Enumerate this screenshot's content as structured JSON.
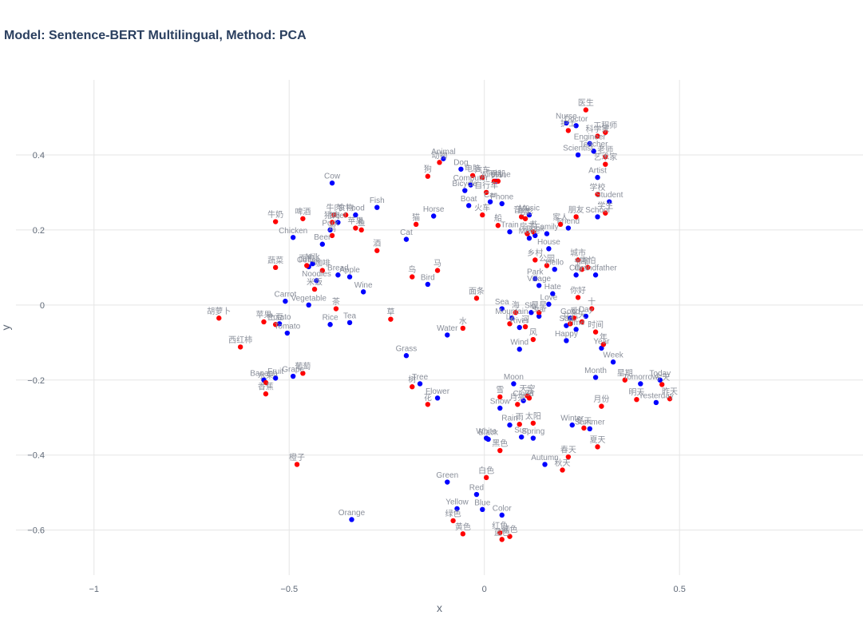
{
  "chart_data": {
    "type": "scatter",
    "title": "Model: Sentence-BERT Multilingual, Method: PCA",
    "xlabel": "x",
    "ylabel": "y",
    "xlim": [
      -1.2,
      0.97
    ],
    "ylim": [
      -0.72,
      0.6
    ],
    "xticks": [
      -1,
      -0.5,
      0,
      0.5
    ],
    "xtick_labels": [
      "−1",
      "−0.5",
      "0",
      "0.5"
    ],
    "yticks": [
      -0.6,
      -0.4,
      -0.2,
      0,
      0.2,
      0.4
    ],
    "ytick_labels": [
      "−0.6",
      "−0.4",
      "−0.2",
      "0",
      "0.2",
      "0.4"
    ],
    "grid": true,
    "legend": "none",
    "colors": {
      "english": "#0000ff",
      "chinese": "#ff0000",
      "grid": "#e5e5e5",
      "label": "#8a8f9a"
    },
    "series": [
      {
        "color": "#0000ff",
        "points": [
          {
            "label": "Nurse",
            "x": 0.21,
            "y": 0.485
          },
          {
            "label": "Doctor",
            "x": 0.235,
            "y": 0.478
          },
          {
            "label": "Engineer",
            "x": 0.27,
            "y": 0.43
          },
          {
            "label": "Scientist",
            "x": 0.24,
            "y": 0.4
          },
          {
            "label": "Teacher",
            "x": 0.28,
            "y": 0.41
          },
          {
            "label": "Artist",
            "x": 0.29,
            "y": 0.34
          },
          {
            "label": "Student",
            "x": 0.32,
            "y": 0.275
          },
          {
            "label": "School",
            "x": 0.29,
            "y": 0.235
          },
          {
            "label": "Friend",
            "x": 0.215,
            "y": 0.205
          },
          {
            "label": "Family",
            "x": 0.16,
            "y": 0.19
          },
          {
            "label": "Book",
            "x": 0.13,
            "y": 0.185
          },
          {
            "label": "Movie",
            "x": 0.115,
            "y": 0.178
          },
          {
            "label": "Train",
            "x": 0.065,
            "y": 0.195
          },
          {
            "label": "Music",
            "x": 0.115,
            "y": 0.24
          },
          {
            "label": "Phone",
            "x": 0.045,
            "y": 0.27
          },
          {
            "label": "Computer",
            "x": -0.035,
            "y": 0.32
          },
          {
            "label": "Airplane",
            "x": 0.03,
            "y": 0.33
          },
          {
            "label": "Bicycle",
            "x": -0.05,
            "y": 0.305
          },
          {
            "label": "Boat",
            "x": -0.04,
            "y": 0.265
          },
          {
            "label": "Car",
            "x": 0.015,
            "y": 0.275
          },
          {
            "label": "Dog",
            "x": -0.06,
            "y": 0.362
          },
          {
            "label": "Animal",
            "x": -0.105,
            "y": 0.39
          },
          {
            "label": "Horse",
            "x": -0.13,
            "y": 0.237
          },
          {
            "label": "Cat",
            "x": -0.2,
            "y": 0.175
          },
          {
            "label": "Fish",
            "x": -0.275,
            "y": 0.26
          },
          {
            "label": "Cow",
            "x": -0.39,
            "y": 0.325
          },
          {
            "label": "Chicken",
            "x": -0.49,
            "y": 0.18
          },
          {
            "label": "Beer",
            "x": -0.415,
            "y": 0.162
          },
          {
            "label": "Pork",
            "x": -0.395,
            "y": 0.2
          },
          {
            "label": "Beef",
            "x": -0.375,
            "y": 0.22
          },
          {
            "label": "Food",
            "x": -0.33,
            "y": 0.24
          },
          {
            "label": "Milk",
            "x": -0.44,
            "y": 0.11
          },
          {
            "label": "Coffee",
            "x": -0.45,
            "y": 0.102
          },
          {
            "label": "Bread",
            "x": -0.375,
            "y": 0.08
          },
          {
            "label": "Apple",
            "x": -0.345,
            "y": 0.075
          },
          {
            "label": "Noodles",
            "x": -0.43,
            "y": 0.065
          },
          {
            "label": "Wine",
            "x": -0.31,
            "y": 0.035
          },
          {
            "label": "Carrot",
            "x": -0.51,
            "y": 0.01
          },
          {
            "label": "Vegetable",
            "x": -0.45,
            "y": 0.0
          },
          {
            "label": "Potato",
            "x": -0.525,
            "y": -0.05
          },
          {
            "label": "Tomato",
            "x": -0.505,
            "y": -0.075
          },
          {
            "label": "Rice",
            "x": -0.395,
            "y": -0.052
          },
          {
            "label": "Tea",
            "x": -0.345,
            "y": -0.047
          },
          {
            "label": "Bird",
            "x": -0.145,
            "y": 0.055
          },
          {
            "label": "Water",
            "x": -0.095,
            "y": -0.08
          },
          {
            "label": "Grass",
            "x": -0.2,
            "y": -0.135
          },
          {
            "label": "Tree",
            "x": -0.165,
            "y": -0.21
          },
          {
            "label": "Flower",
            "x": -0.12,
            "y": -0.248
          },
          {
            "label": "Banana",
            "x": -0.565,
            "y": -0.2
          },
          {
            "label": "Fruit",
            "x": -0.535,
            "y": -0.195
          },
          {
            "label": "Grape",
            "x": -0.49,
            "y": -0.19
          },
          {
            "label": "Orange",
            "x": -0.34,
            "y": -0.572
          },
          {
            "label": "House",
            "x": 0.165,
            "y": 0.15
          },
          {
            "label": "Hello",
            "x": 0.18,
            "y": 0.095
          },
          {
            "label": "Park",
            "x": 0.13,
            "y": 0.07
          },
          {
            "label": "Village",
            "x": 0.14,
            "y": 0.052
          },
          {
            "label": "City",
            "x": 0.235,
            "y": 0.08
          },
          {
            "label": "Grandfather",
            "x": 0.285,
            "y": 0.08
          },
          {
            "label": "Hate",
            "x": 0.175,
            "y": 0.03
          },
          {
            "label": "Love",
            "x": 0.165,
            "y": 0.002
          },
          {
            "label": "Sea",
            "x": 0.045,
            "y": -0.01
          },
          {
            "label": "Sky",
            "x": 0.12,
            "y": -0.02
          },
          {
            "label": "Mountain",
            "x": 0.07,
            "y": -0.035
          },
          {
            "label": "River",
            "x": 0.09,
            "y": -0.06
          },
          {
            "label": "Star",
            "x": 0.14,
            "y": -0.03
          },
          {
            "label": "Sad",
            "x": 0.21,
            "y": -0.055
          },
          {
            "label": "Time",
            "x": 0.235,
            "y": -0.065
          },
          {
            "label": "Happy",
            "x": 0.21,
            "y": -0.095
          },
          {
            "label": "Good",
            "x": 0.22,
            "y": -0.035
          },
          {
            "label": "Day",
            "x": 0.26,
            "y": -0.03
          },
          {
            "label": "Wind",
            "x": 0.09,
            "y": -0.118
          },
          {
            "label": "Year",
            "x": 0.3,
            "y": -0.115
          },
          {
            "label": "Week",
            "x": 0.33,
            "y": -0.152
          },
          {
            "label": "Month",
            "x": 0.285,
            "y": -0.193
          },
          {
            "label": "Tomorrow",
            "x": 0.4,
            "y": -0.21
          },
          {
            "label": "Today",
            "x": 0.45,
            "y": -0.2
          },
          {
            "label": "Yesterday",
            "x": 0.44,
            "y": -0.26
          },
          {
            "label": "Moon",
            "x": 0.075,
            "y": -0.21
          },
          {
            "label": "Snow",
            "x": 0.04,
            "y": -0.275
          },
          {
            "label": "Cloud",
            "x": 0.1,
            "y": -0.255
          },
          {
            "label": "Rain",
            "x": 0.065,
            "y": -0.32
          },
          {
            "label": "Sun",
            "x": 0.095,
            "y": -0.352
          },
          {
            "label": "Spring",
            "x": 0.125,
            "y": -0.355
          },
          {
            "label": "White",
            "x": 0.005,
            "y": -0.355
          },
          {
            "label": "Black",
            "x": 0.01,
            "y": -0.358
          },
          {
            "label": "Winter",
            "x": 0.225,
            "y": -0.32
          },
          {
            "label": "Summer",
            "x": 0.27,
            "y": -0.33
          },
          {
            "label": "Autumn",
            "x": 0.155,
            "y": -0.425
          },
          {
            "label": "Green",
            "x": -0.095,
            "y": -0.472
          },
          {
            "label": "Red",
            "x": -0.02,
            "y": -0.505
          },
          {
            "label": "Yellow",
            "x": -0.07,
            "y": -0.543
          },
          {
            "label": "Blue",
            "x": -0.005,
            "y": -0.545
          },
          {
            "label": "Color",
            "x": 0.045,
            "y": -0.56
          }
        ]
      },
      {
        "color": "#ff0000",
        "points": [
          {
            "label": "医生",
            "x": 0.26,
            "y": 0.52
          },
          {
            "label": "护士",
            "x": 0.215,
            "y": 0.465
          },
          {
            "label": "工程师",
            "x": 0.31,
            "y": 0.46
          },
          {
            "label": "科学家",
            "x": 0.29,
            "y": 0.45
          },
          {
            "label": "老师",
            "x": 0.31,
            "y": 0.395
          },
          {
            "label": "艺术家",
            "x": 0.31,
            "y": 0.375
          },
          {
            "label": "学校",
            "x": 0.29,
            "y": 0.295
          },
          {
            "label": "学生",
            "x": 0.31,
            "y": 0.245
          },
          {
            "label": "朋友",
            "x": 0.235,
            "y": 0.235
          },
          {
            "label": "家人",
            "x": 0.195,
            "y": 0.215
          },
          {
            "label": "音乐",
            "x": 0.095,
            "y": 0.235
          },
          {
            "label": "电影",
            "x": 0.105,
            "y": 0.23
          },
          {
            "label": "书",
            "x": 0.125,
            "y": 0.195
          },
          {
            "label": "房子",
            "x": 0.11,
            "y": 0.19
          },
          {
            "label": "船",
            "x": 0.035,
            "y": 0.212
          },
          {
            "label": "火车",
            "x": -0.005,
            "y": 0.24
          },
          {
            "label": "电脑",
            "x": -0.03,
            "y": 0.345
          },
          {
            "label": "汽车",
            "x": -0.005,
            "y": 0.34
          },
          {
            "label": "手机",
            "x": 0.035,
            "y": 0.33
          },
          {
            "label": "飞机",
            "x": 0.025,
            "y": 0.33
          },
          {
            "label": "自行车",
            "x": 0.005,
            "y": 0.3
          },
          {
            "label": "狗",
            "x": -0.145,
            "y": 0.343
          },
          {
            "label": "动物",
            "x": -0.115,
            "y": 0.38
          },
          {
            "label": "马",
            "x": -0.12,
            "y": 0.092
          },
          {
            "label": "猫",
            "x": -0.175,
            "y": 0.215
          },
          {
            "label": "鸟",
            "x": -0.185,
            "y": 0.075
          },
          {
            "label": "鱼",
            "x": -0.315,
            "y": 0.2
          },
          {
            "label": "牛奶",
            "x": -0.535,
            "y": 0.222
          },
          {
            "label": "啤酒",
            "x": -0.465,
            "y": 0.23
          },
          {
            "label": "牛肉",
            "x": -0.385,
            "y": 0.24
          },
          {
            "label": "食物",
            "x": -0.355,
            "y": 0.24
          },
          {
            "label": "猪肉",
            "x": -0.39,
            "y": 0.22
          },
          {
            "label": "鸡",
            "x": -0.39,
            "y": 0.185
          },
          {
            "label": "苹果",
            "x": -0.33,
            "y": 0.205
          },
          {
            "label": "酒",
            "x": -0.275,
            "y": 0.145
          },
          {
            "label": "蔬菜",
            "x": -0.535,
            "y": 0.1
          },
          {
            "label": "面包",
            "x": -0.455,
            "y": 0.105
          },
          {
            "label": "咖啡",
            "x": -0.415,
            "y": 0.092
          },
          {
            "label": "米饭",
            "x": -0.435,
            "y": 0.042
          },
          {
            "label": "茶",
            "x": -0.38,
            "y": -0.01
          },
          {
            "label": "胡萝卜",
            "x": -0.68,
            "y": -0.035
          },
          {
            "label": "苹果",
            "x": -0.565,
            "y": -0.045
          },
          {
            "label": "土豆",
            "x": -0.535,
            "y": -0.052
          },
          {
            "label": "西红柿",
            "x": -0.625,
            "y": -0.112
          },
          {
            "label": "草",
            "x": -0.24,
            "y": -0.038
          },
          {
            "label": "水",
            "x": -0.055,
            "y": -0.062
          },
          {
            "label": "面条",
            "x": -0.02,
            "y": 0.018
          },
          {
            "label": "树",
            "x": -0.185,
            "y": -0.218
          },
          {
            "label": "花",
            "x": -0.145,
            "y": -0.265
          },
          {
            "label": "水果",
            "x": -0.56,
            "y": -0.207
          },
          {
            "label": "葡萄",
            "x": -0.465,
            "y": -0.182
          },
          {
            "label": "香蕉",
            "x": -0.56,
            "y": -0.237
          },
          {
            "label": "橙子",
            "x": -0.48,
            "y": -0.425
          },
          {
            "label": "乡村",
            "x": 0.13,
            "y": 0.12
          },
          {
            "label": "公园",
            "x": 0.16,
            "y": 0.105
          },
          {
            "label": "城市",
            "x": 0.24,
            "y": 0.12
          },
          {
            "label": "害怕",
            "x": 0.265,
            "y": 0.1
          },
          {
            "label": "爷爷",
            "x": 0.25,
            "y": 0.095
          },
          {
            "label": "你好",
            "x": 0.24,
            "y": 0.02
          },
          {
            "label": "十",
            "x": 0.275,
            "y": -0.01
          },
          {
            "label": "海",
            "x": 0.08,
            "y": -0.02
          },
          {
            "label": "山",
            "x": 0.065,
            "y": -0.05
          },
          {
            "label": "星星",
            "x": 0.14,
            "y": -0.02
          },
          {
            "label": "河",
            "x": 0.105,
            "y": -0.058
          },
          {
            "label": "风",
            "x": 0.125,
            "y": -0.092
          },
          {
            "label": "爱",
            "x": 0.23,
            "y": -0.035
          },
          {
            "label": "天",
            "x": 0.25,
            "y": -0.045
          },
          {
            "label": "开心",
            "x": 0.22,
            "y": -0.05
          },
          {
            "label": "时间",
            "x": 0.285,
            "y": -0.072
          },
          {
            "label": "年",
            "x": 0.305,
            "y": -0.105
          },
          {
            "label": "星期",
            "x": 0.36,
            "y": -0.2
          },
          {
            "label": "明天",
            "x": 0.39,
            "y": -0.252
          },
          {
            "label": "今天",
            "x": 0.455,
            "y": -0.212
          },
          {
            "label": "昨天",
            "x": 0.475,
            "y": -0.25
          },
          {
            "label": "月份",
            "x": 0.3,
            "y": -0.27
          },
          {
            "label": "雪",
            "x": 0.04,
            "y": -0.245
          },
          {
            "label": "月亮",
            "x": 0.085,
            "y": -0.265
          },
          {
            "label": "天空",
            "x": 0.11,
            "y": -0.242
          },
          {
            "label": "云",
            "x": 0.115,
            "y": -0.248
          },
          {
            "label": "雨",
            "x": 0.09,
            "y": -0.318
          },
          {
            "label": "太阳",
            "x": 0.125,
            "y": -0.315
          },
          {
            "label": "黑色",
            "x": 0.04,
            "y": -0.388
          },
          {
            "label": "冬天",
            "x": 0.255,
            "y": -0.328
          },
          {
            "label": "夏天",
            "x": 0.29,
            "y": -0.378
          },
          {
            "label": "春天",
            "x": 0.215,
            "y": -0.405
          },
          {
            "label": "秋天",
            "x": 0.2,
            "y": -0.44
          },
          {
            "label": "白色",
            "x": 0.005,
            "y": -0.46
          },
          {
            "label": "绿色",
            "x": -0.08,
            "y": -0.575
          },
          {
            "label": "黄色",
            "x": -0.055,
            "y": -0.61
          },
          {
            "label": "红色",
            "x": 0.04,
            "y": -0.607
          },
          {
            "label": "蓝色",
            "x": 0.045,
            "y": -0.625
          },
          {
            "label": "颜色",
            "x": 0.065,
            "y": -0.617
          }
        ]
      }
    ]
  }
}
